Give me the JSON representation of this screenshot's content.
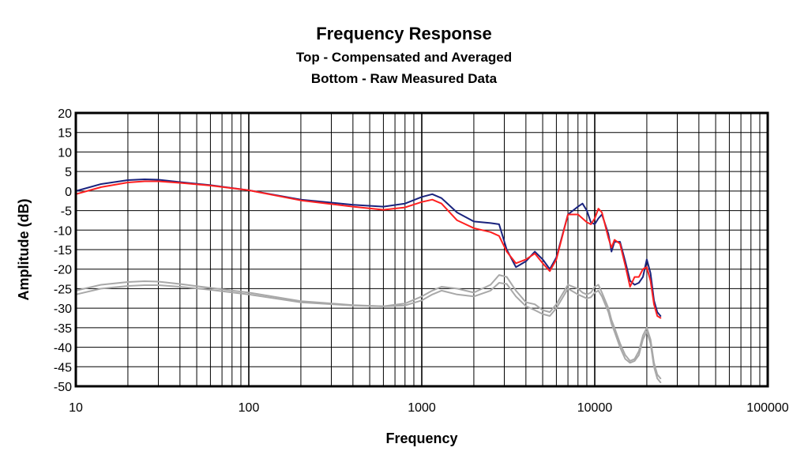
{
  "chart_data": {
    "type": "line",
    "title": "Frequency Response",
    "subtitle_lines": [
      "Top -  Compensated and Averaged",
      "Bottom - Raw Measured Data"
    ],
    "xlabel": "Frequency",
    "ylabel": "Amplitude (dB)",
    "x_scale": "log",
    "xlim": [
      10,
      100000
    ],
    "ylim": [
      -50,
      20
    ],
    "x_ticks": [
      "10",
      "100",
      "1000",
      "10000",
      "100000"
    ],
    "y_ticks": [
      "20",
      "15",
      "10",
      "5",
      "0",
      "-5",
      "-10",
      "-15",
      "-20",
      "-25",
      "-30",
      "-35",
      "-40",
      "-45",
      "-50"
    ],
    "grid": true,
    "series": [
      {
        "color": "#1a237e",
        "x": [
          10,
          14,
          20,
          25,
          30,
          40,
          60,
          100,
          200,
          400,
          600,
          800,
          1000,
          1150,
          1300,
          1600,
          2000,
          2500,
          2800,
          3100,
          3500,
          4000,
          4500,
          5000,
          5500,
          6000,
          7000,
          8000,
          8500,
          9000,
          9500,
          10000,
          10500,
          11000,
          12000,
          12500,
          13000,
          14000,
          15000,
          16000,
          17000,
          18000,
          19000,
          20000,
          21000,
          22000,
          23000,
          24000
        ],
        "y": [
          0,
          1.8,
          2.8,
          3.0,
          2.9,
          2.3,
          1.5,
          0.2,
          -2.2,
          -3.5,
          -4.0,
          -3.2,
          -1.5,
          -0.8,
          -1.8,
          -5.5,
          -7.8,
          -8.2,
          -8.5,
          -15,
          -19.5,
          -18,
          -15.5,
          -17.5,
          -20,
          -17,
          -6,
          -4,
          -3.2,
          -5,
          -8,
          -8.5,
          -7,
          -6,
          -11,
          -15.5,
          -13,
          -13,
          -18,
          -23,
          -24,
          -23.5,
          -22,
          -17.5,
          -21,
          -28,
          -31,
          -32
        ]
      },
      {
        "color": "#ff2020",
        "x": [
          10,
          14,
          20,
          25,
          30,
          40,
          60,
          100,
          200,
          400,
          600,
          800,
          1000,
          1150,
          1300,
          1600,
          2000,
          2500,
          2800,
          3100,
          3500,
          4000,
          4500,
          5000,
          5500,
          6000,
          7000,
          8000,
          8500,
          9000,
          9500,
          10000,
          10500,
          11000,
          12000,
          12500,
          13000,
          14000,
          15000,
          16000,
          17000,
          18000,
          19000,
          20000,
          21000,
          22000,
          23000,
          24000
        ],
        "y": [
          -0.8,
          1.0,
          2.2,
          2.5,
          2.5,
          2.1,
          1.4,
          0.2,
          -2.4,
          -4.0,
          -4.8,
          -4.2,
          -2.8,
          -2.2,
          -3.2,
          -7.5,
          -9.5,
          -10.5,
          -11.5,
          -15.5,
          -18.5,
          -17.5,
          -16,
          -18.5,
          -20.5,
          -17.5,
          -6,
          -6,
          -7,
          -8,
          -8.5,
          -7,
          -4.5,
          -5.5,
          -12,
          -14.5,
          -12.5,
          -13.5,
          -19,
          -24.5,
          -22,
          -22,
          -20,
          -19.5,
          -23,
          -29,
          -32,
          -32.5
        ]
      },
      {
        "color": "#a8a8a8",
        "x": [
          10,
          14,
          20,
          25,
          30,
          40,
          60,
          100,
          200,
          400,
          600,
          800,
          1000,
          1150,
          1300,
          1600,
          2000,
          2500,
          2800,
          3100,
          3500,
          4000,
          4500,
          5000,
          5500,
          6000,
          7000,
          8000,
          8500,
          9000,
          9500,
          10000,
          10500,
          11000,
          12000,
          12500,
          13000,
          14000,
          15000,
          16000,
          17000,
          18000,
          19000,
          20000,
          21000,
          22000,
          23000,
          24000
        ],
        "y": [
          -25.5,
          -24,
          -23.3,
          -23.1,
          -23.2,
          -23.8,
          -24.8,
          -26,
          -28.2,
          -29.2,
          -29.5,
          -28.8,
          -27,
          -25.5,
          -24.5,
          -25,
          -26,
          -24,
          -21.5,
          -22,
          -25.5,
          -28.5,
          -29,
          -30.5,
          -31,
          -29,
          -24,
          -25,
          -26,
          -26.5,
          -26,
          -24.5,
          -24,
          -26,
          -30,
          -33,
          -35,
          -39,
          -42,
          -43.5,
          -43,
          -41,
          -37,
          -35,
          -38,
          -44,
          -47,
          -48
        ]
      },
      {
        "color": "#a8a8a8",
        "x": [
          10,
          14,
          20,
          25,
          30,
          40,
          60,
          100,
          200,
          400,
          600,
          800,
          1000,
          1150,
          1300,
          1600,
          2000,
          2500,
          2800,
          3100,
          3500,
          4000,
          4500,
          5000,
          5500,
          6000,
          7000,
          8000,
          8500,
          9000,
          9500,
          10000,
          10500,
          11000,
          12000,
          12500,
          13000,
          14000,
          15000,
          16000,
          17000,
          18000,
          19000,
          20000,
          21000,
          22000,
          23000,
          24000
        ],
        "y": [
          -26.5,
          -25,
          -24.3,
          -24.1,
          -24.1,
          -24.5,
          -25.3,
          -26.5,
          -28.5,
          -29.3,
          -29.5,
          -29.3,
          -28,
          -26.5,
          -25.5,
          -26.5,
          -27,
          -25.5,
          -23.5,
          -23.8,
          -27,
          -29.5,
          -30.5,
          -31.5,
          -32,
          -30,
          -25,
          -26.5,
          -27,
          -27.5,
          -27.2,
          -26,
          -25.5,
          -27,
          -31,
          -34,
          -36,
          -40,
          -43,
          -44,
          -43.5,
          -42,
          -38,
          -36,
          -39,
          -45,
          -48,
          -49
        ]
      }
    ]
  }
}
